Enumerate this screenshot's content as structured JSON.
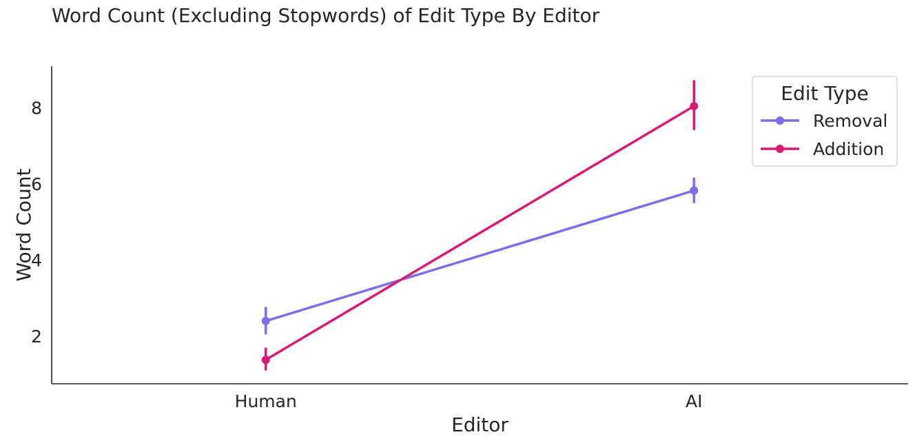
{
  "chart_data": {
    "type": "line",
    "title": "Word Count (Excluding Stopwords) of Edit Type By Editor",
    "xlabel": "Editor",
    "ylabel": "Word Count",
    "categories": [
      "Human",
      "AI"
    ],
    "ylim": [
      0.75,
      9.1
    ],
    "yticks": [
      2,
      4,
      6,
      8
    ],
    "grid": false,
    "legend": {
      "title": "Edit Type",
      "placement": "top-right"
    },
    "series": [
      {
        "name": "Removal",
        "color": "#7b6ee8",
        "values": [
          2.4,
          5.83
        ],
        "ci_low": [
          2.05,
          5.5
        ],
        "ci_high": [
          2.77,
          6.17
        ]
      },
      {
        "name": "Addition",
        "color": "#d81b72",
        "values": [
          1.38,
          8.05
        ],
        "ci_low": [
          1.1,
          7.42
        ],
        "ci_high": [
          1.7,
          8.73
        ]
      }
    ]
  }
}
